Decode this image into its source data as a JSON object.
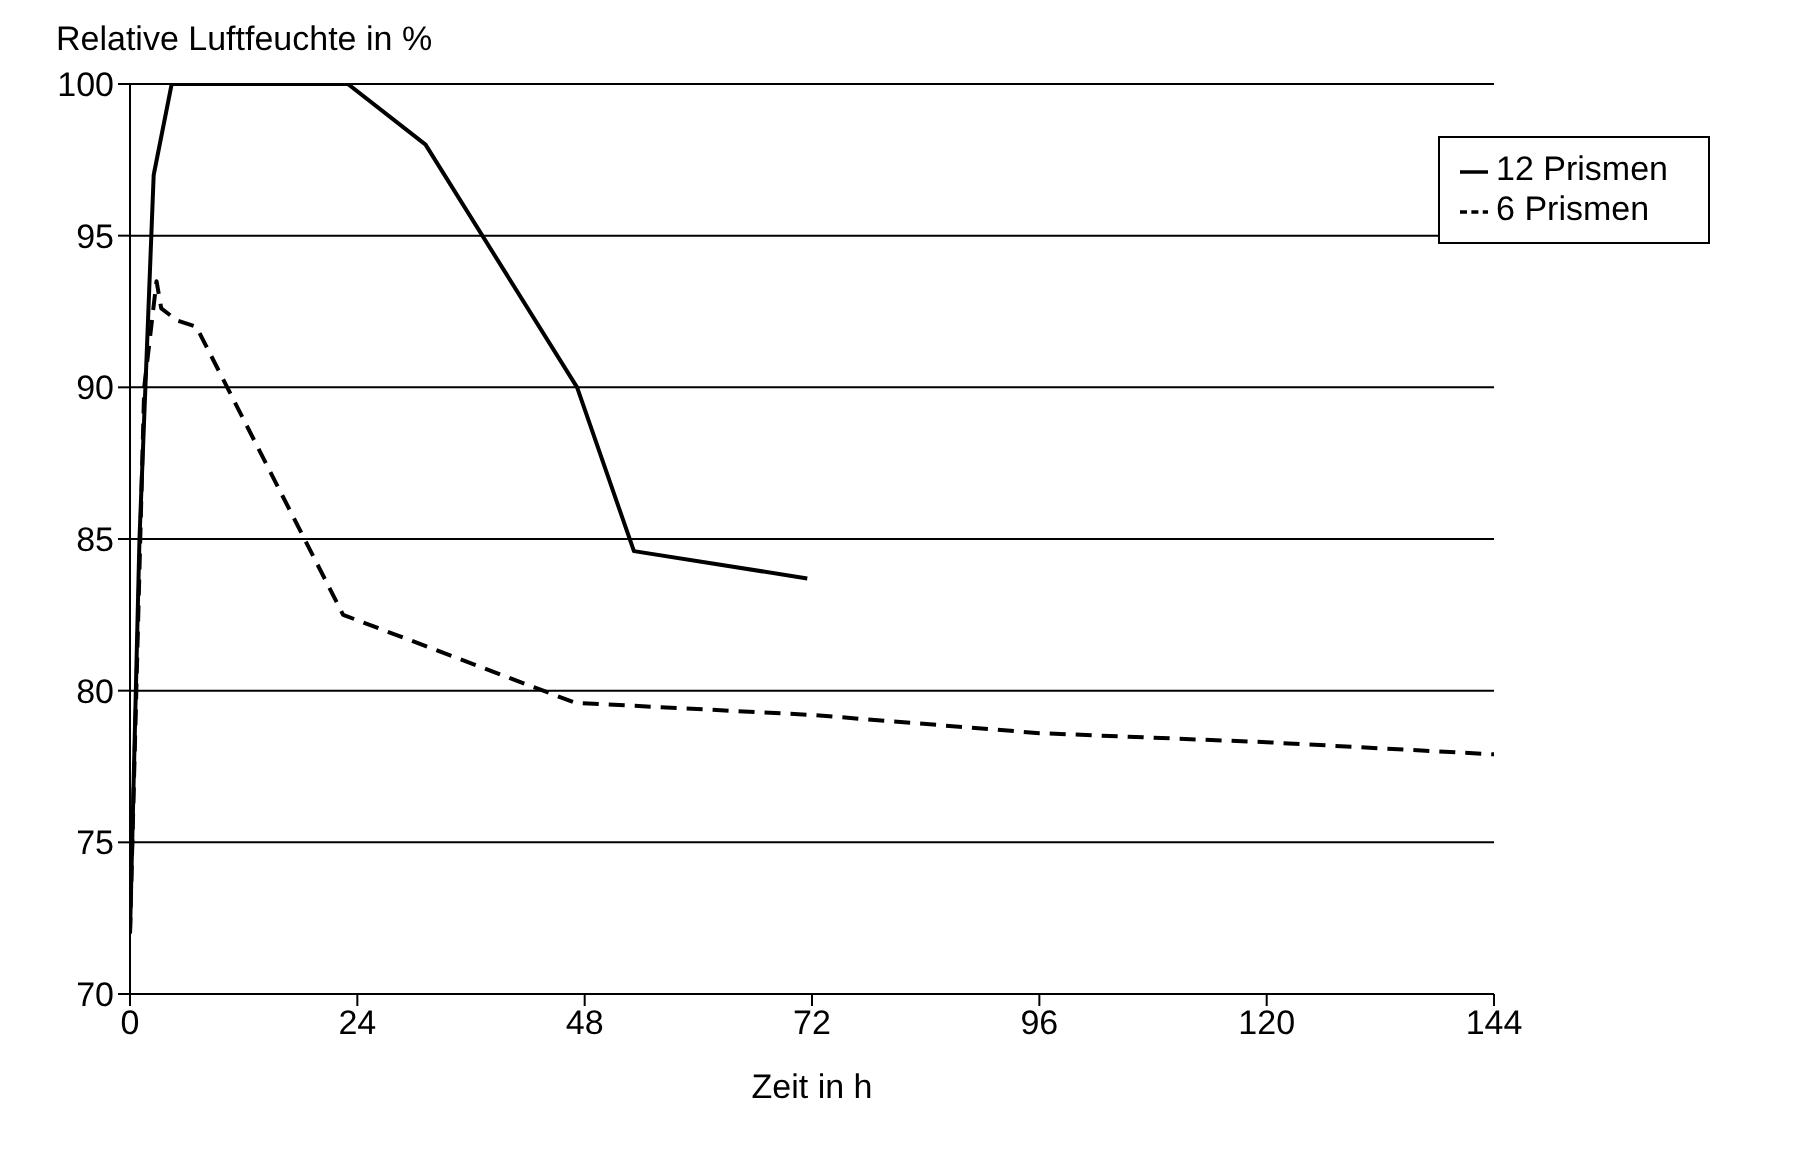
{
  "chart_data": {
    "type": "line",
    "ylabel": "Relative Luftfeuchte in %",
    "xlabel": "Zeit in h",
    "xlim": [
      0,
      144
    ],
    "xticks": [
      0,
      24,
      48,
      72,
      96,
      120,
      144
    ],
    "ylim": [
      70,
      100
    ],
    "yticks": [
      70,
      75,
      80,
      85,
      90,
      95,
      100
    ],
    "grid": "y",
    "legend": "top right",
    "marker": "none",
    "series": [
      {
        "name": "6 Prismen",
        "color": "#000000",
        "line_style": "dashed",
        "x": [
          0,
          1.5,
          2.8,
          3.3,
          5,
          7,
          22.5,
          47,
          72,
          96,
          120,
          144
        ],
        "values": [
          72,
          90,
          93.5,
          92.6,
          92.2,
          92,
          82.5,
          79.6,
          79.2,
          78.6,
          78.3,
          77.9
        ]
      },
      {
        "name": "12 Prismen",
        "color": "#000000",
        "line_style": "solid",
        "x": [
          0,
          1,
          2.5,
          4.4,
          23,
          31.2,
          47.2,
          53.2,
          71.5
        ],
        "values": [
          72,
          85,
          97,
          100,
          100,
          98,
          90,
          84.6,
          83.7
        ]
      }
    ]
  }
}
